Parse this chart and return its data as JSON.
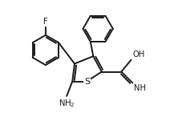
{
  "background_color": "#ffffff",
  "line_color": "#1a1a1a",
  "line_width": 1.4,
  "figsize": [
    2.28,
    1.66
  ],
  "dpi": 100,
  "font_size": 7.2,
  "xlim": [
    0,
    9
  ],
  "ylim": [
    0,
    7
  ]
}
